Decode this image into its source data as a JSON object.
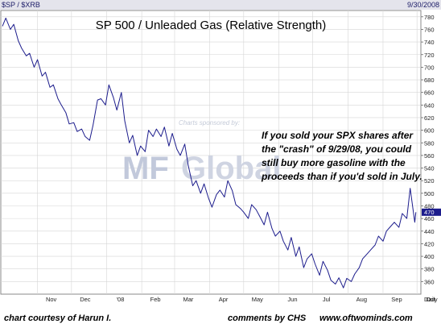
{
  "header": {
    "symbol": "$SP / $XRB",
    "date": "9/30/2008"
  },
  "annotation": [
    "If you sold your SPX shares after",
    "the \"crash\" of 9/29/08, you could",
    "still buy more gasoline with the",
    "proceeds than if you'd sold in July."
  ],
  "watermark": {
    "sponsor": "Charts sponsored by:",
    "logo": "MF",
    "brand": "Global"
  },
  "footer": {
    "credit": "chart courtesy of Harun I.",
    "comments": "comments by CHS",
    "site": "www.oftwominds.com"
  },
  "colors": {
    "line": "#1c1c8c",
    "grid": "#d6d6d6",
    "header_bg": "#e4e4ec",
    "last_box": "#1c1c8c"
  },
  "chart_data": {
    "type": "line",
    "title": "SP 500 / Unleaded Gas (Relative Strength)",
    "xlabel": "",
    "ylabel": "",
    "frequency_label": "Daily",
    "ylim": [
      340,
      790
    ],
    "y_ticks": [
      360,
      380,
      400,
      420,
      440,
      460,
      480,
      500,
      520,
      540,
      560,
      580,
      600,
      620,
      640,
      660,
      680,
      700,
      720,
      740,
      760,
      780
    ],
    "x_tick_labels": [
      "Nov",
      "Dec",
      "'08",
      "Feb",
      "Mar",
      "Apr",
      "May",
      "Jun",
      "Jul",
      "Aug",
      "Sep",
      "Oct"
    ],
    "last_value": 470,
    "grid": true,
    "series": [
      {
        "x": [
          "2007-10-01",
          "2007-10-04",
          "2007-10-08",
          "2007-10-11",
          "2007-10-15",
          "2007-10-18",
          "2007-10-22",
          "2007-10-25",
          "2007-10-29",
          "2007-11-01",
          "2007-11-05",
          "2007-11-08",
          "2007-11-12",
          "2007-11-15",
          "2007-11-19",
          "2007-11-22",
          "2007-11-26",
          "2007-11-29",
          "2007-12-03",
          "2007-12-06",
          "2007-12-10",
          "2007-12-13",
          "2007-12-17",
          "2007-12-20",
          "2007-12-24",
          "2007-12-27",
          "2007-12-31",
          "2008-01-03",
          "2008-01-07",
          "2008-01-10",
          "2008-01-14",
          "2008-01-17",
          "2008-01-21",
          "2008-01-24",
          "2008-01-28",
          "2008-01-31",
          "2008-02-04",
          "2008-02-07",
          "2008-02-11",
          "2008-02-14",
          "2008-02-18",
          "2008-02-21",
          "2008-02-25",
          "2008-02-28",
          "2008-03-03",
          "2008-03-06",
          "2008-03-10",
          "2008-03-13",
          "2008-03-17",
          "2008-03-20",
          "2008-03-24",
          "2008-03-27",
          "2008-03-31",
          "2008-04-03",
          "2008-04-07",
          "2008-04-10",
          "2008-04-14",
          "2008-04-17",
          "2008-04-21",
          "2008-04-24",
          "2008-04-28",
          "2008-05-01",
          "2008-05-05",
          "2008-05-08",
          "2008-05-12",
          "2008-05-15",
          "2008-05-19",
          "2008-05-22",
          "2008-05-26",
          "2008-05-29",
          "2008-06-02",
          "2008-06-05",
          "2008-06-09",
          "2008-06-12",
          "2008-06-16",
          "2008-06-19",
          "2008-06-23",
          "2008-06-26",
          "2008-06-30",
          "2008-07-03",
          "2008-07-07",
          "2008-07-10",
          "2008-07-14",
          "2008-07-17",
          "2008-07-21",
          "2008-07-24",
          "2008-07-28",
          "2008-07-31",
          "2008-08-04",
          "2008-08-07",
          "2008-08-11",
          "2008-08-14",
          "2008-08-18",
          "2008-08-21",
          "2008-08-25",
          "2008-08-28",
          "2008-09-01",
          "2008-09-04",
          "2008-09-08",
          "2008-09-11",
          "2008-09-15",
          "2008-09-18",
          "2008-09-22",
          "2008-09-25",
          "2008-09-29",
          "2008-09-30"
        ],
        "values": [
          765,
          778,
          760,
          768,
          742,
          730,
          718,
          722,
          700,
          712,
          686,
          692,
          668,
          672,
          650,
          640,
          628,
          610,
          612,
          598,
          602,
          590,
          584,
          608,
          648,
          650,
          640,
          672,
          652,
          632,
          660,
          615,
          580,
          592,
          560,
          575,
          566,
          600,
          590,
          602,
          590,
          605,
          575,
          595,
          570,
          560,
          578,
          545,
          512,
          520,
          500,
          515,
          492,
          478,
          498,
          505,
          494,
          520,
          504,
          482,
          476,
          470,
          460,
          482,
          474,
          464,
          450,
          470,
          444,
          432,
          440,
          424,
          410,
          430,
          400,
          415,
          382,
          396,
          404,
          388,
          370,
          392,
          378,
          362,
          356,
          366,
          350,
          365,
          360,
          372,
          382,
          396,
          404,
          410,
          418,
          432,
          424,
          440,
          448,
          454,
          446,
          468,
          460,
          508,
          454,
          470
        ]
      }
    ]
  }
}
